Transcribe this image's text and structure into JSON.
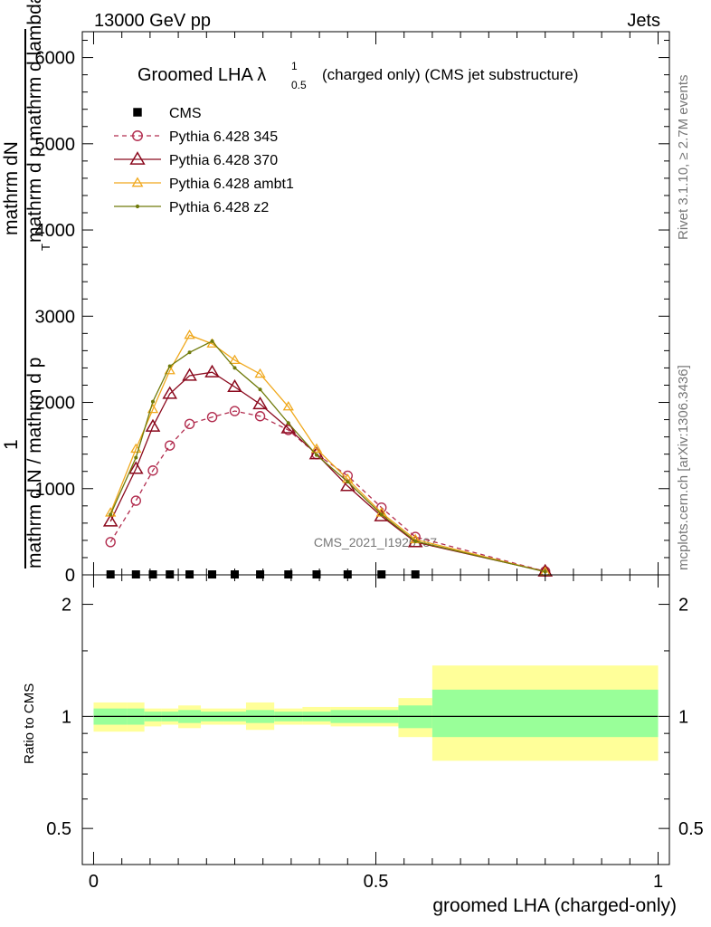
{
  "header": {
    "left": "13000 GeV pp",
    "right": "Jets"
  },
  "side_labels": {
    "rivet": "Rivet 3.1.10, ≥ 2.7M events",
    "mcplots": "mcplots.cern.ch [arXiv:1306.3436]"
  },
  "watermark": "CMS_2021_I1920187",
  "chart_data": [
    {
      "type": "line",
      "title": "Groomed LHA λ",
      "title_sup": "1",
      "title_sub": "0.5",
      "title_rest": "(charged only) (CMS jet substructure)",
      "ylabel_num": "1",
      "ylabel_num_rest": "mathrm dN",
      "ylabel_den": "mathrm d N / mathrm d p",
      "ylabel_den_rest": "mathrm d p  mathrm d lambda",
      "ylabel_sub": "T",
      "xlim": [
        -0.02,
        1.02
      ],
      "ylim": [
        0,
        6300
      ],
      "yticks": [
        0,
        1000,
        2000,
        3000,
        4000,
        5000,
        6000
      ],
      "ytick_labels": [
        "0",
        "1000",
        "2000",
        "3000",
        "4000",
        "5000",
        "6000"
      ],
      "legend_position": "top-left",
      "series": [
        {
          "name": "CMS",
          "color": "#000000",
          "marker": "filled-square",
          "x": [
            0.03,
            0.075,
            0.105,
            0.135,
            0.17,
            0.21,
            0.25,
            0.295,
            0.345,
            0.395,
            0.45,
            0.51,
            0.57
          ],
          "y": [
            5,
            5,
            5,
            5,
            5,
            5,
            5,
            5,
            5,
            5,
            5,
            5,
            5
          ]
        },
        {
          "name": "Pythia 6.428 345",
          "color": "#b22d4f",
          "marker": "open-circle",
          "dash": true,
          "x": [
            0.03,
            0.075,
            0.105,
            0.135,
            0.17,
            0.21,
            0.25,
            0.295,
            0.345,
            0.395,
            0.45,
            0.51,
            0.57,
            0.8
          ],
          "y": [
            380,
            860,
            1210,
            1500,
            1750,
            1830,
            1900,
            1840,
            1680,
            1400,
            1150,
            780,
            440,
            40
          ]
        },
        {
          "name": "Pythia 6.428 370",
          "color": "#8b0a1e",
          "marker": "open-triangle",
          "x": [
            0.03,
            0.075,
            0.105,
            0.135,
            0.17,
            0.21,
            0.25,
            0.295,
            0.345,
            0.395,
            0.45,
            0.51,
            0.57,
            0.8
          ],
          "y": [
            620,
            1230,
            1720,
            2100,
            2310,
            2350,
            2180,
            1980,
            1700,
            1400,
            1030,
            680,
            380,
            40
          ]
        },
        {
          "name": "Pythia 6.428 ambt1",
          "color": "#f0a81c",
          "marker": "open-triangle-small",
          "x": [
            0.03,
            0.075,
            0.105,
            0.135,
            0.17,
            0.21,
            0.25,
            0.295,
            0.345,
            0.395,
            0.45,
            0.51,
            0.57,
            0.8
          ],
          "y": [
            720,
            1460,
            1920,
            2370,
            2780,
            2680,
            2490,
            2330,
            1950,
            1460,
            1110,
            720,
            410,
            35
          ]
        },
        {
          "name": "Pythia 6.428 z2",
          "color": "#6f7a0a",
          "marker": "dot",
          "x": [
            0.03,
            0.075,
            0.105,
            0.135,
            0.17,
            0.21,
            0.25,
            0.295,
            0.345,
            0.395,
            0.45,
            0.51,
            0.57,
            0.8
          ],
          "y": [
            700,
            1360,
            2010,
            2420,
            2580,
            2710,
            2400,
            2150,
            1760,
            1390,
            1080,
            700,
            390,
            35
          ]
        }
      ]
    },
    {
      "type": "area",
      "ylabel": "Ratio to CMS",
      "xlabel": "groomed LHA (charged-only)",
      "xlim": [
        -0.02,
        1.02
      ],
      "ylim": [
        0.4,
        2.4
      ],
      "log_y": true,
      "yticks": [
        0.5,
        1,
        2
      ],
      "ytick_labels": [
        "0.5",
        "1",
        "2"
      ],
      "xticks": [
        0,
        0.5,
        1
      ],
      "xtick_labels": [
        "0",
        "0.5",
        "1"
      ],
      "reference_line": 1,
      "bins": {
        "edges": [
          0,
          0.06,
          0.09,
          0.12,
          0.15,
          0.19,
          0.23,
          0.27,
          0.32,
          0.37,
          0.42,
          0.48,
          0.54,
          0.6,
          1.0
        ],
        "stat_lo": [
          0.95,
          0.95,
          0.97,
          0.97,
          0.96,
          0.97,
          0.97,
          0.96,
          0.97,
          0.97,
          0.96,
          0.96,
          0.93,
          0.88
        ],
        "stat_hi": [
          1.05,
          1.05,
          1.03,
          1.03,
          1.04,
          1.03,
          1.03,
          1.04,
          1.03,
          1.03,
          1.04,
          1.04,
          1.07,
          1.18
        ],
        "tot_lo": [
          0.91,
          0.91,
          0.94,
          0.95,
          0.93,
          0.95,
          0.95,
          0.92,
          0.95,
          0.95,
          0.94,
          0.94,
          0.88,
          0.76
        ],
        "tot_hi": [
          1.09,
          1.09,
          1.05,
          1.05,
          1.07,
          1.05,
          1.05,
          1.09,
          1.05,
          1.06,
          1.06,
          1.06,
          1.12,
          1.37
        ]
      },
      "colors": {
        "stat": "#99ff99",
        "total": "#ffff99"
      }
    }
  ]
}
